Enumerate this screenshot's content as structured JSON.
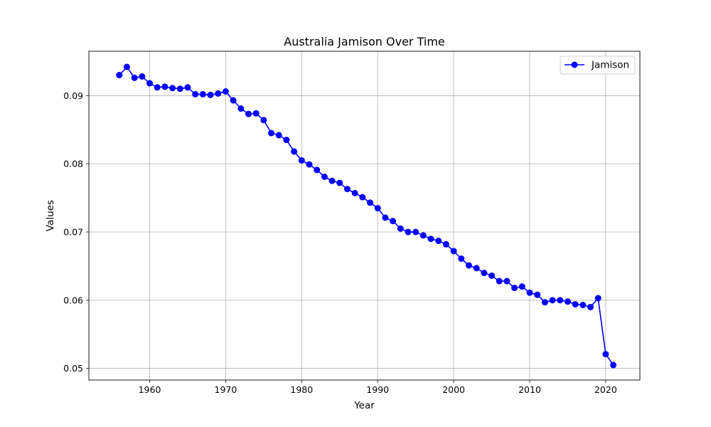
{
  "chart_data": {
    "type": "line",
    "title": "Australia Jamison Over Time",
    "xlabel": "Year",
    "ylabel": "Values",
    "xlim": [
      1952,
      2024.5
    ],
    "ylim": [
      0.0483,
      0.0965
    ],
    "xticks": [
      1960,
      1970,
      1980,
      1990,
      2000,
      2010,
      2020
    ],
    "yticks": [
      0.05,
      0.06,
      0.07,
      0.08,
      0.09
    ],
    "ytick_labels": [
      "0.05",
      "0.06",
      "0.07",
      "0.08",
      "0.09"
    ],
    "grid": true,
    "legend_position": "top-right",
    "series": [
      {
        "name": "Jamison",
        "color": "#0000ff",
        "marker": "circle",
        "x": [
          1956,
          1957,
          1958,
          1959,
          1960,
          1961,
          1962,
          1963,
          1964,
          1965,
          1966,
          1967,
          1968,
          1969,
          1970,
          1971,
          1972,
          1973,
          1974,
          1975,
          1976,
          1977,
          1978,
          1979,
          1980,
          1981,
          1982,
          1983,
          1984,
          1985,
          1986,
          1987,
          1988,
          1989,
          1990,
          1991,
          1992,
          1993,
          1994,
          1995,
          1996,
          1997,
          1998,
          1999,
          2000,
          2001,
          2002,
          2003,
          2004,
          2005,
          2006,
          2007,
          2008,
          2009,
          2010,
          2011,
          2012,
          2013,
          2014,
          2015,
          2016,
          2017,
          2018,
          2019,
          2020,
          2021
        ],
        "values": [
          0.093,
          0.0942,
          0.0926,
          0.0928,
          0.0918,
          0.0912,
          0.0913,
          0.0911,
          0.091,
          0.0912,
          0.0902,
          0.0902,
          0.0901,
          0.0903,
          0.0906,
          0.0893,
          0.0881,
          0.0873,
          0.0874,
          0.0864,
          0.0845,
          0.0842,
          0.0835,
          0.0818,
          0.0805,
          0.0799,
          0.0791,
          0.0781,
          0.0775,
          0.0772,
          0.0763,
          0.0757,
          0.0751,
          0.0743,
          0.0735,
          0.0721,
          0.0716,
          0.0705,
          0.07,
          0.07,
          0.0695,
          0.069,
          0.0687,
          0.0682,
          0.0672,
          0.0661,
          0.0651,
          0.0647,
          0.064,
          0.0636,
          0.0628,
          0.0628,
          0.0618,
          0.062,
          0.0611,
          0.0608,
          0.0597,
          0.06,
          0.06,
          0.0598,
          0.0594,
          0.0593,
          0.059,
          0.0603,
          0.0521,
          0.0505
        ]
      }
    ]
  }
}
